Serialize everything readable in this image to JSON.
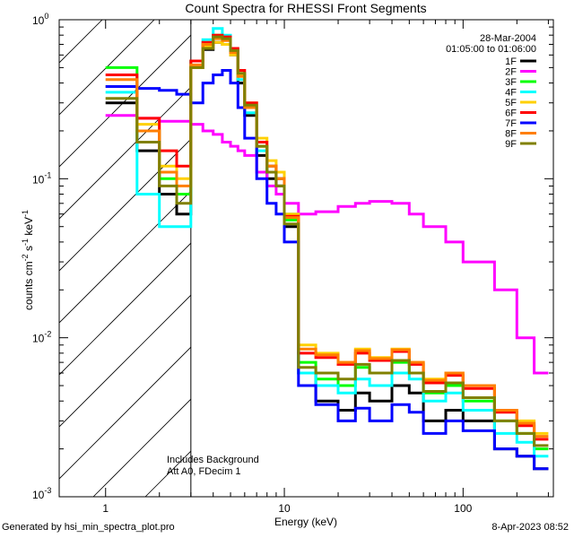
{
  "chart_data": {
    "type": "line",
    "title": "Count Spectra for RHESSI Front Segments",
    "xlabel": "Energy (keV)",
    "ylabel_html": "counts cm<tspan dy=\"-5\" font-size=\"9\">-2</tspan><tspan dy=\"5\"> s</tspan><tspan dy=\"-5\" font-size=\"9\">-1</tspan><tspan dy=\"5\"> keV</tspan><tspan dy=\"-5\" font-size=\"9\">-1</tspan>",
    "ylabel_plain": "counts cm-2 s-1 keV-1",
    "xscale": "log",
    "yscale": "log",
    "xlim": [
      0.55,
      320
    ],
    "ylim": [
      0.001,
      1.0
    ],
    "x_ticks": [
      {
        "v": 1,
        "label": "1"
      },
      {
        "v": 10,
        "label": "10"
      },
      {
        "v": 100,
        "label": "100"
      }
    ],
    "y_ticks": [
      {
        "v": 1,
        "base": "10",
        "exp": "0"
      },
      {
        "v": 0.1,
        "base": "10",
        "exp": "-1"
      },
      {
        "v": 0.01,
        "base": "10",
        "exp": "-2"
      },
      {
        "v": 0.001,
        "base": "10",
        "exp": "-3"
      }
    ],
    "date": "28-Mar-2004",
    "time_range": "01:05:00 to 01:06:00",
    "annotation_lines": [
      "Includes Background",
      "Att A0, FDecim 1"
    ],
    "hatch_region_kev": [
      0.55,
      3.0
    ],
    "energy_bins_kev": [
      1,
      1.5,
      2,
      2.5,
      3,
      3.5,
      4,
      4.5,
      5,
      5.5,
      6,
      7,
      8,
      9,
      10,
      12,
      15,
      20,
      25,
      30,
      40,
      50,
      60,
      80,
      100,
      150,
      200,
      250,
      300
    ],
    "series": [
      {
        "name": "1F",
        "color": "#000000",
        "values": [
          0.3,
          0.15,
          0.08,
          0.06,
          0.5,
          0.65,
          0.72,
          0.7,
          0.6,
          0.4,
          0.25,
          0.14,
          0.1,
          0.09,
          0.05,
          0.006,
          0.004,
          0.0035,
          0.0045,
          0.004,
          0.005,
          0.0045,
          0.003,
          0.0035,
          0.003,
          0.002,
          0.0018,
          0.0015
        ]
      },
      {
        "name": "2F",
        "color": "#ff00ff",
        "values": [
          0.25,
          0.24,
          0.23,
          0.23,
          0.22,
          0.2,
          0.19,
          0.17,
          0.16,
          0.15,
          0.14,
          0.11,
          0.09,
          0.08,
          0.07,
          0.06,
          0.062,
          0.067,
          0.07,
          0.072,
          0.07,
          0.06,
          0.05,
          0.04,
          0.03,
          0.02,
          0.01,
          0.006
        ]
      },
      {
        "name": "3F",
        "color": "#00ff00",
        "values": [
          0.5,
          0.2,
          0.1,
          0.08,
          0.55,
          0.7,
          0.8,
          0.78,
          0.65,
          0.45,
          0.28,
          0.16,
          0.11,
          0.1,
          0.055,
          0.007,
          0.0055,
          0.005,
          0.0065,
          0.006,
          0.007,
          0.006,
          0.0045,
          0.005,
          0.004,
          0.003,
          0.0025,
          0.002
        ]
      },
      {
        "name": "4F",
        "color": "#00ffff",
        "values": [
          0.35,
          0.08,
          0.05,
          0.05,
          0.55,
          0.75,
          0.88,
          0.8,
          0.62,
          0.42,
          0.26,
          0.15,
          0.12,
          0.1,
          0.06,
          0.006,
          0.005,
          0.0045,
          0.0055,
          0.005,
          0.006,
          0.0055,
          0.004,
          0.0045,
          0.0035,
          0.0025,
          0.0022,
          0.0018
        ]
      },
      {
        "name": "5F",
        "color": "#ffd000",
        "values": [
          0.38,
          0.22,
          0.12,
          0.1,
          0.5,
          0.68,
          0.72,
          0.7,
          0.6,
          0.45,
          0.3,
          0.18,
          0.13,
          0.11,
          0.06,
          0.009,
          0.008,
          0.007,
          0.0085,
          0.0075,
          0.0085,
          0.007,
          0.0055,
          0.006,
          0.005,
          0.0035,
          0.003,
          0.0025
        ]
      },
      {
        "name": "6F",
        "color": "#ff0000",
        "values": [
          0.45,
          0.24,
          0.15,
          0.12,
          0.55,
          0.72,
          0.8,
          0.78,
          0.66,
          0.48,
          0.3,
          0.17,
          0.12,
          0.1,
          0.058,
          0.008,
          0.0075,
          0.0068,
          0.008,
          0.0072,
          0.0082,
          0.0068,
          0.0052,
          0.0058,
          0.0048,
          0.0034,
          0.0028,
          0.0023
        ]
      },
      {
        "name": "7F",
        "color": "#0000ff",
        "values": [
          0.38,
          0.37,
          0.36,
          0.34,
          0.3,
          0.4,
          0.45,
          0.48,
          0.4,
          0.28,
          0.18,
          0.1,
          0.07,
          0.06,
          0.04,
          0.005,
          0.0038,
          0.003,
          0.0036,
          0.003,
          0.0038,
          0.0034,
          0.0025,
          0.003,
          0.0026,
          0.002,
          0.0018,
          0.0015
        ]
      },
      {
        "name": "8F",
        "color": "#ff7f00",
        "values": [
          0.42,
          0.2,
          0.11,
          0.09,
          0.52,
          0.7,
          0.76,
          0.74,
          0.62,
          0.44,
          0.28,
          0.16,
          0.12,
          0.1,
          0.057,
          0.0085,
          0.0078,
          0.007,
          0.0083,
          0.0074,
          0.0084,
          0.007,
          0.0054,
          0.006,
          0.005,
          0.0035,
          0.0029,
          0.0024
        ]
      },
      {
        "name": "9F",
        "color": "#808000",
        "values": [
          0.32,
          0.17,
          0.09,
          0.07,
          0.5,
          0.66,
          0.78,
          0.76,
          0.64,
          0.46,
          0.29,
          0.16,
          0.11,
          0.09,
          0.052,
          0.0065,
          0.006,
          0.0055,
          0.0068,
          0.006,
          0.0072,
          0.006,
          0.0046,
          0.0052,
          0.0042,
          0.003,
          0.0025,
          0.0021
        ]
      }
    ]
  },
  "footer": {
    "generated_by": "Generated by hsi_min_spectra_plot.pro",
    "timestamp": "8-Apr-2023 08:52"
  }
}
